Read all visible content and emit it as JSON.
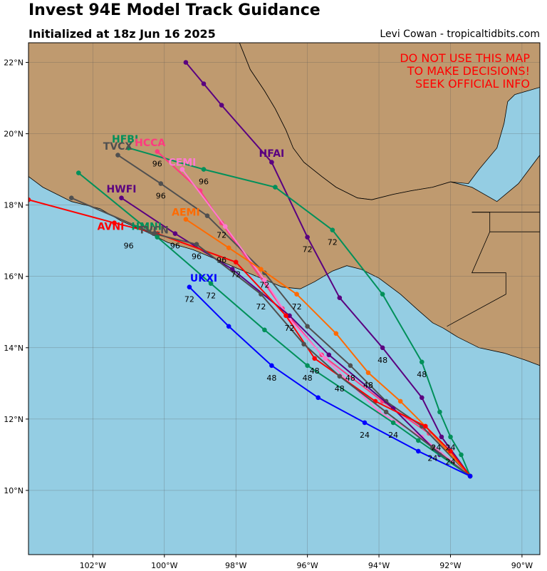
{
  "header": {
    "title": "Invest 94E Model Track Guidance",
    "subtitle": "Initialized at 18z Jun 16 2025",
    "credit": "Levi Cowan - tropicaltidbits.com"
  },
  "map": {
    "warning_lines": [
      "DO NOT USE THIS MAP",
      "TO MAKE DECISIONS!",
      "SEEK OFFICIAL INFO"
    ],
    "lon_range": [
      -103.8,
      -89.5
    ],
    "lat_range": [
      8.2,
      22.55
    ],
    "lon_ticks": [
      -102,
      -100,
      -98,
      -96,
      -94,
      -92,
      -90
    ],
    "lon_tick_labels": [
      "102°W",
      "100°W",
      "98°W",
      "96°W",
      "94°W",
      "92°W",
      "90°W"
    ],
    "lat_ticks": [
      10,
      12,
      14,
      16,
      18,
      20,
      22
    ],
    "lat_tick_labels": [
      "10°N",
      "12°N",
      "14°N",
      "16°N",
      "18°N",
      "20°N",
      "22°N"
    ],
    "colors": {
      "ocean": "#94cde3",
      "land": "#bf9a6f",
      "border": "#000000"
    },
    "land_polygons": [
      [
        [
          -103.8,
          22.55
        ],
        [
          -89.5,
          22.55
        ],
        [
          -89.5,
          21.3
        ],
        [
          -90.2,
          21.1
        ],
        [
          -90.4,
          20.9
        ],
        [
          -90.5,
          20.3
        ],
        [
          -90.7,
          19.6
        ],
        [
          -91.2,
          19.0
        ],
        [
          -91.5,
          18.6
        ],
        [
          -92.0,
          18.65
        ],
        [
          -92.5,
          18.5
        ],
        [
          -93.1,
          18.4
        ],
        [
          -93.6,
          18.3
        ],
        [
          -94.2,
          18.15
        ],
        [
          -94.6,
          18.2
        ],
        [
          -95.2,
          18.5
        ],
        [
          -95.6,
          18.8
        ],
        [
          -96.1,
          19.2
        ],
        [
          -96.4,
          19.6
        ],
        [
          -96.6,
          20.1
        ],
        [
          -96.9,
          20.7
        ],
        [
          -97.2,
          21.2
        ],
        [
          -97.6,
          21.8
        ],
        [
          -97.8,
          22.3
        ],
        [
          -97.9,
          22.55
        ],
        [
          -103.8,
          22.55
        ]
      ],
      [
        [
          -103.8,
          18.8
        ],
        [
          -103.4,
          18.5
        ],
        [
          -102.6,
          18.1
        ],
        [
          -101.8,
          17.9
        ],
        [
          -101.2,
          17.55
        ],
        [
          -100.5,
          17.25
        ],
        [
          -99.9,
          16.95
        ],
        [
          -99.2,
          16.75
        ],
        [
          -98.6,
          16.5
        ],
        [
          -97.9,
          16.2
        ],
        [
          -97.3,
          15.95
        ],
        [
          -96.7,
          15.7
        ],
        [
          -96.2,
          15.65
        ],
        [
          -95.8,
          15.85
        ],
        [
          -95.3,
          16.15
        ],
        [
          -94.9,
          16.3
        ],
        [
          -94.5,
          16.2
        ],
        [
          -94.0,
          15.95
        ],
        [
          -93.4,
          15.5
        ],
        [
          -92.9,
          15.05
        ],
        [
          -92.5,
          14.7
        ],
        [
          -92.2,
          14.55
        ],
        [
          -91.8,
          14.3
        ],
        [
          -91.2,
          14.0
        ],
        [
          -90.5,
          13.85
        ],
        [
          -89.9,
          13.65
        ],
        [
          -89.5,
          13.5
        ],
        [
          -89.5,
          19.4
        ],
        [
          -90.1,
          18.6
        ],
        [
          -90.7,
          18.1
        ],
        [
          -91.4,
          18.5
        ],
        [
          -92.0,
          18.65
        ],
        [
          -92.5,
          18.5
        ],
        [
          -93.1,
          18.4
        ],
        [
          -93.6,
          18.3
        ],
        [
          -94.2,
          18.15
        ],
        [
          -94.6,
          18.2
        ],
        [
          -95.2,
          18.5
        ],
        [
          -95.6,
          18.8
        ],
        [
          -96.1,
          19.2
        ],
        [
          -96.4,
          19.6
        ],
        [
          -96.6,
          20.1
        ],
        [
          -96.9,
          20.7
        ],
        [
          -97.2,
          21.2
        ],
        [
          -97.6,
          21.8
        ],
        [
          -97.9,
          22.55
        ],
        [
          -103.8,
          22.55
        ]
      ]
    ],
    "border_lines": [
      [
        [
          -91.4,
          17.8
        ],
        [
          -90.9,
          17.8
        ],
        [
          -90.9,
          17.25
        ],
        [
          -91.4,
          16.1
        ],
        [
          -90.45,
          16.1
        ],
        [
          -90.45,
          15.5
        ],
        [
          -92.1,
          14.6
        ]
      ],
      [
        [
          -91.4,
          17.8
        ],
        [
          -89.5,
          17.8
        ]
      ],
      [
        [
          -89.5,
          17.25
        ],
        [
          -90.9,
          17.25
        ]
      ]
    ]
  },
  "models": [
    {
      "name": "HFAI",
      "color": "#5a0080",
      "label_pos": [
        -97.0,
        19.45
      ],
      "points": [
        [
          -91.45,
          10.4
        ],
        [
          -92.25,
          11.5
        ],
        [
          -92.8,
          12.6
        ],
        [
          -93.9,
          14.0
        ],
        [
          -95.1,
          15.4
        ],
        [
          -96.0,
          17.1
        ],
        [
          -97.0,
          19.2
        ],
        [
          -98.4,
          20.8
        ],
        [
          -98.9,
          21.4
        ],
        [
          -99.4,
          22.0
        ]
      ],
      "hour_labels": [
        {
          "text": "24",
          "at": [
            -92.4,
            11.25
          ]
        },
        {
          "text": "48",
          "at": [
            -93.9,
            13.7
          ]
        },
        {
          "text": "72",
          "at": [
            -96.0,
            16.8
          ]
        }
      ]
    },
    {
      "name": "HFBI",
      "color": "#00905a",
      "label_pos": [
        -101.1,
        19.85
      ],
      "points": [
        [
          -91.45,
          10.4
        ],
        [
          -91.7,
          11.0
        ],
        [
          -92.0,
          11.5
        ],
        [
          -92.3,
          12.2
        ],
        [
          -92.8,
          13.6
        ],
        [
          -93.9,
          15.5
        ],
        [
          -95.3,
          17.3
        ],
        [
          -96.9,
          18.5
        ],
        [
          -98.9,
          19.0
        ],
        [
          -101.0,
          19.6
        ]
      ],
      "hour_labels": [
        {
          "text": "24",
          "at": [
            -92.0,
            11.25
          ]
        },
        {
          "text": "48",
          "at": [
            -92.8,
            13.3
          ]
        },
        {
          "text": "72",
          "at": [
            -95.3,
            17.0
          ]
        },
        {
          "text": "96",
          "at": [
            -98.9,
            18.7
          ]
        }
      ]
    },
    {
      "name": "HCCA",
      "color": "#ff3a80",
      "label_pos": [
        -100.4,
        19.75
      ],
      "points": [
        [
          -91.45,
          10.4
        ],
        [
          -92.6,
          11.6
        ],
        [
          -93.9,
          12.5
        ],
        [
          -95.6,
          13.8
        ],
        [
          -96.7,
          15.1
        ],
        [
          -98.4,
          17.5
        ],
        [
          -99.0,
          18.4
        ],
        [
          -100.2,
          19.5
        ]
      ],
      "hour_labels": [
        {
          "text": "72",
          "at": [
            -98.4,
            17.2
          ]
        },
        {
          "text": "96",
          "at": [
            -100.2,
            19.2
          ]
        }
      ]
    },
    {
      "name": "TVCX",
      "color": "#505050",
      "label_pos": [
        -101.3,
        19.65
      ],
      "points": [
        [
          -91.45,
          10.4
        ],
        [
          -92.8,
          11.8
        ],
        [
          -93.8,
          12.5
        ],
        [
          -94.8,
          13.5
        ],
        [
          -96.0,
          14.6
        ],
        [
          -97.2,
          16.1
        ],
        [
          -98.8,
          17.7
        ],
        [
          -100.1,
          18.6
        ],
        [
          -101.3,
          19.4
        ]
      ],
      "hour_labels": [
        {
          "text": "48",
          "at": [
            -94.8,
            13.2
          ]
        },
        {
          "text": "72",
          "at": [
            -97.2,
            15.8
          ]
        },
        {
          "text": "96",
          "at": [
            -100.1,
            18.3
          ]
        }
      ]
    },
    {
      "name": "CEMI",
      "color": "#ff7ad0",
      "label_pos": [
        -99.5,
        19.2
      ],
      "points": [
        [
          -91.45,
          10.4
        ],
        [
          -92.8,
          11.5
        ],
        [
          -94.0,
          12.2
        ],
        [
          -95.5,
          13.7
        ],
        [
          -96.5,
          14.8
        ],
        [
          -97.2,
          15.9
        ],
        [
          -98.3,
          17.4
        ],
        [
          -99.5,
          19.0
        ]
      ],
      "hour_labels": []
    },
    {
      "name": "HWFI",
      "color": "#5a0080",
      "label_pos": [
        -101.2,
        18.45
      ],
      "points": [
        [
          -91.45,
          10.4
        ],
        [
          -92.3,
          11.0
        ],
        [
          -93.6,
          12.3
        ],
        [
          -95.4,
          13.8
        ],
        [
          -96.5,
          14.9
        ],
        [
          -98.1,
          16.2
        ],
        [
          -99.7,
          17.2
        ],
        [
          -101.2,
          18.2
        ]
      ],
      "hour_labels": [
        {
          "text": "72",
          "at": [
            -96.5,
            14.6
          ]
        },
        {
          "text": "96",
          "at": [
            -99.7,
            16.9
          ]
        }
      ]
    },
    {
      "name": "AEMI",
      "color": "#ff6a00",
      "label_pos": [
        -99.4,
        17.8
      ],
      "points": [
        [
          -91.45,
          10.4
        ],
        [
          -92.7,
          11.8
        ],
        [
          -93.4,
          12.5
        ],
        [
          -94.3,
          13.3
        ],
        [
          -95.2,
          14.4
        ],
        [
          -96.3,
          15.5
        ],
        [
          -97.3,
          16.2
        ],
        [
          -98.2,
          16.8
        ],
        [
          -99.4,
          17.6
        ]
      ],
      "hour_labels": [
        {
          "text": "48",
          "at": [
            -94.3,
            13.0
          ]
        },
        {
          "text": "72",
          "at": [
            -96.3,
            15.2
          ]
        },
        {
          "text": "96",
          "at": [
            -98.4,
            16.5
          ]
        }
      ]
    },
    {
      "name": "AVNI",
      "color": "#ff0000",
      "label_pos": [
        -101.5,
        17.4
      ],
      "points": [
        [
          -91.45,
          10.4
        ],
        [
          -92.0,
          11.1
        ],
        [
          -92.7,
          11.8
        ],
        [
          -94.1,
          12.5
        ],
        [
          -95.8,
          13.7
        ],
        [
          -96.6,
          14.9
        ],
        [
          -98.0,
          16.4
        ],
        [
          -100.2,
          17.2
        ],
        [
          -101.4,
          17.5
        ],
        [
          -103.8,
          18.15
        ]
      ],
      "hour_labels": [
        {
          "text": "24",
          "at": [
            -92.0,
            10.85
          ]
        },
        {
          "text": "48",
          "at": [
            -95.8,
            13.4
          ]
        },
        {
          "text": "72",
          "at": [
            -98.0,
            16.1
          ]
        },
        {
          "text": "96",
          "at": [
            -101.0,
            16.9
          ]
        }
      ]
    },
    {
      "name": "HMNI",
      "color": "#00905a",
      "label_pos": [
        -100.5,
        17.4
      ],
      "points": [
        [
          -91.45,
          10.4
        ],
        [
          -92.9,
          11.4
        ],
        [
          -93.6,
          11.9
        ],
        [
          -96.0,
          13.5
        ],
        [
          -97.2,
          14.5
        ],
        [
          -98.7,
          15.8
        ],
        [
          -100.2,
          17.1
        ],
        [
          -102.4,
          18.9
        ]
      ],
      "hour_labels": [
        {
          "text": "24",
          "at": [
            -93.6,
            11.6
          ]
        },
        {
          "text": "48",
          "at": [
            -96.0,
            13.2
          ]
        },
        {
          "text": "72",
          "at": [
            -98.7,
            15.5
          ]
        }
      ]
    },
    {
      "name": "TVCN",
      "color": "#505050",
      "label_pos": [
        -100.3,
        17.3
      ],
      "points": [
        [
          -91.45,
          10.4
        ],
        [
          -92.5,
          11.2
        ],
        [
          -93.8,
          12.2
        ],
        [
          -95.1,
          13.2
        ],
        [
          -96.1,
          14.1
        ],
        [
          -97.3,
          15.5
        ],
        [
          -99.1,
          16.9
        ],
        [
          -100.3,
          17.2
        ],
        [
          -102.6,
          18.2
        ]
      ],
      "hour_labels": [
        {
          "text": "24",
          "at": [
            -92.5,
            10.95
          ]
        },
        {
          "text": "48",
          "at": [
            -95.1,
            12.9
          ]
        },
        {
          "text": "72",
          "at": [
            -97.3,
            15.2
          ]
        },
        {
          "text": "96",
          "at": [
            -99.1,
            16.6
          ]
        }
      ]
    },
    {
      "name": "UKXI",
      "color": "#0000ff",
      "label_pos": [
        -98.9,
        15.95
      ],
      "points": [
        [
          -91.45,
          10.4
        ],
        [
          -92.9,
          11.1
        ],
        [
          -94.4,
          11.9
        ],
        [
          -95.7,
          12.6
        ],
        [
          -97.0,
          13.5
        ],
        [
          -98.2,
          14.6
        ],
        [
          -99.3,
          15.7
        ]
      ],
      "hour_labels": [
        {
          "text": "24",
          "at": [
            -94.4,
            11.6
          ]
        },
        {
          "text": "48",
          "at": [
            -97.0,
            13.2
          ]
        },
        {
          "text": "72",
          "at": [
            -99.3,
            15.4
          ]
        }
      ]
    }
  ]
}
